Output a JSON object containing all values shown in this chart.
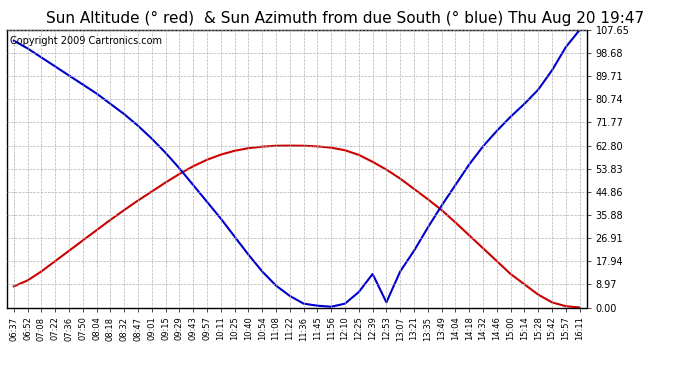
{
  "title": "Sun Altitude (° red)  & Sun Azimuth from due South (° blue) Thu Aug 20 19:47",
  "copyright": "Copyright 2009 Cartronics.com",
  "y_ticks": [
    0.0,
    8.97,
    17.94,
    26.91,
    35.88,
    44.86,
    53.83,
    62.8,
    71.77,
    80.74,
    89.71,
    98.68,
    107.65
  ],
  "y_max": 107.65,
  "x_labels": [
    "06:37",
    "06:52",
    "07:08",
    "07:22",
    "07:36",
    "07:50",
    "08:04",
    "08:18",
    "08:32",
    "08:47",
    "09:01",
    "09:15",
    "09:29",
    "09:43",
    "09:57",
    "10:11",
    "10:25",
    "10:40",
    "10:54",
    "11:08",
    "11:22",
    "11:36",
    "11:45",
    "11:56",
    "12:10",
    "12:25",
    "12:39",
    "12:53",
    "13:07",
    "13:21",
    "13:35",
    "13:49",
    "14:04",
    "14:18",
    "14:32",
    "14:46",
    "15:00",
    "15:14",
    "15:28",
    "15:42",
    "15:57",
    "16:11"
  ],
  "altitude_values": [
    8.2,
    10.5,
    14.0,
    18.0,
    22.0,
    26.0,
    30.0,
    34.0,
    37.8,
    41.5,
    45.0,
    48.5,
    51.8,
    54.8,
    57.3,
    59.3,
    60.8,
    61.8,
    62.4,
    62.75,
    62.8,
    62.75,
    62.5,
    62.0,
    61.0,
    59.2,
    56.5,
    53.5,
    50.0,
    46.0,
    42.0,
    37.8,
    33.0,
    28.0,
    23.0,
    18.0,
    13.0,
    9.0,
    5.0,
    2.0,
    0.5,
    0.0
  ],
  "azimuth_values": [
    103.5,
    100.5,
    97.0,
    93.5,
    90.0,
    86.5,
    83.0,
    79.0,
    75.0,
    70.5,
    65.5,
    60.0,
    54.0,
    47.5,
    41.0,
    34.5,
    27.5,
    20.5,
    14.0,
    8.5,
    4.5,
    1.5,
    0.7,
    0.3,
    1.5,
    6.0,
    13.0,
    2.0,
    14.0,
    22.0,
    31.0,
    39.5,
    47.5,
    55.5,
    62.5,
    68.5,
    74.0,
    79.0,
    84.5,
    92.0,
    101.0,
    107.65
  ],
  "altitude_color": "#cc0000",
  "azimuth_color": "#0000cc",
  "background_color": "#ffffff",
  "grid_color": "#aaaaaa",
  "title_fontsize": 11,
  "copyright_fontsize": 7,
  "line_width": 1.5,
  "tick_fontsize": 7,
  "xtick_fontsize": 6
}
